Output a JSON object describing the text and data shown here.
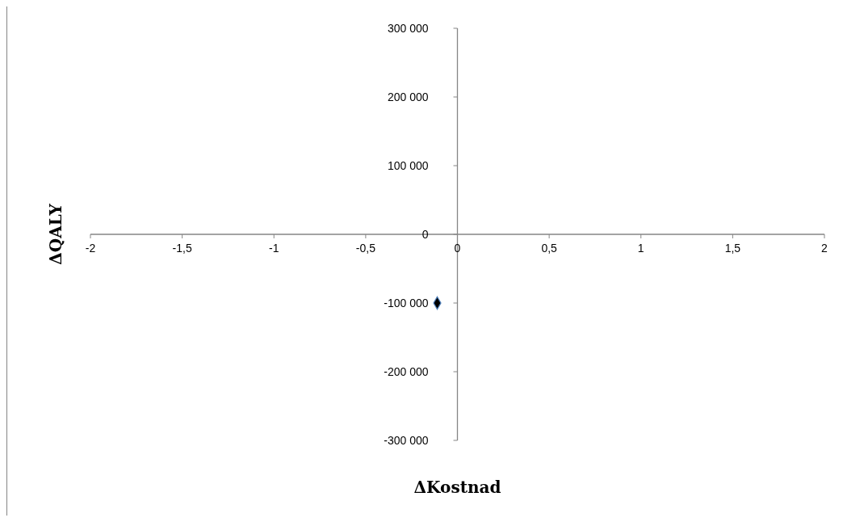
{
  "chart_data": {
    "type": "scatter",
    "xlabel": "ΔKostnad",
    "ylabel": "ΔQALY",
    "x": [
      -0.11
    ],
    "values": [
      -100000
    ],
    "color": "#000000",
    "marker": "diamond",
    "xlim": [
      -2,
      2
    ],
    "xticks": [
      -2,
      {
        "value": -1.5,
        "label": "-1,5"
      },
      -1,
      {
        "value": -0.5,
        "label": "-0,5"
      },
      0,
      {
        "value": 0.5,
        "label": "0,5"
      },
      1,
      {
        "value": 1.5,
        "label": "1,5"
      },
      2
    ],
    "ylim": [
      -300000,
      300000
    ],
    "yticks": [
      {
        "value": -300000,
        "label": "-300 000"
      },
      {
        "value": -200000,
        "label": "-200 000"
      },
      {
        "value": -100000,
        "label": "-100 000"
      },
      0,
      {
        "value": 100000,
        "label": "100 000"
      },
      {
        "value": 200000,
        "label": "200 000"
      },
      {
        "value": 300000,
        "label": "300 000"
      }
    ],
    "grid": false
  }
}
